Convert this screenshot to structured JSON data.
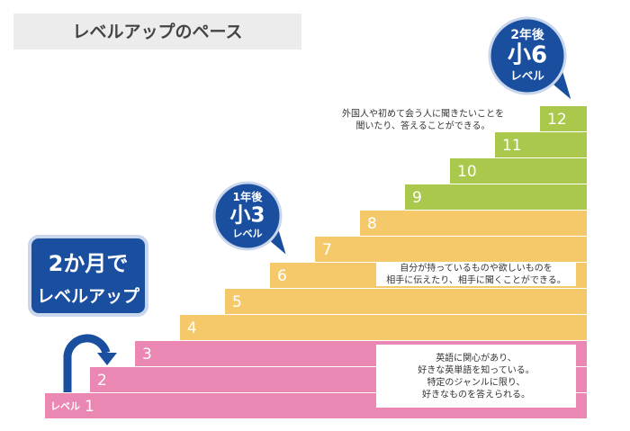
{
  "header": {
    "title": "レベルアップのペース"
  },
  "steps": {
    "prefix": "レベル",
    "labels": [
      "1",
      "2",
      "3",
      "4",
      "5",
      "6",
      "7",
      "8",
      "9",
      "10",
      "11",
      "12"
    ]
  },
  "badges": [
    {
      "top": "1年後",
      "main": "小3",
      "bottom": "レベル"
    },
    {
      "top": "2年後",
      "main": "小6",
      "bottom": "レベル"
    }
  ],
  "pace": {
    "line1": "2か月で",
    "line2": "レベルアップ"
  },
  "notes": [
    {
      "lines": [
        "英語に関心があり、",
        "好きな英単語を知っている。",
        "特定のジャンルに限り、",
        "好きなものを答えられる。"
      ]
    },
    {
      "lines": [
        "自分が持っているものや欲しいものを",
        "相手に伝えたり、相手に聞くことができる。"
      ]
    },
    {
      "lines": [
        "外国人や初めて会う人に聞きたいことを",
        "聞いたり、答えることができる。"
      ]
    }
  ]
}
